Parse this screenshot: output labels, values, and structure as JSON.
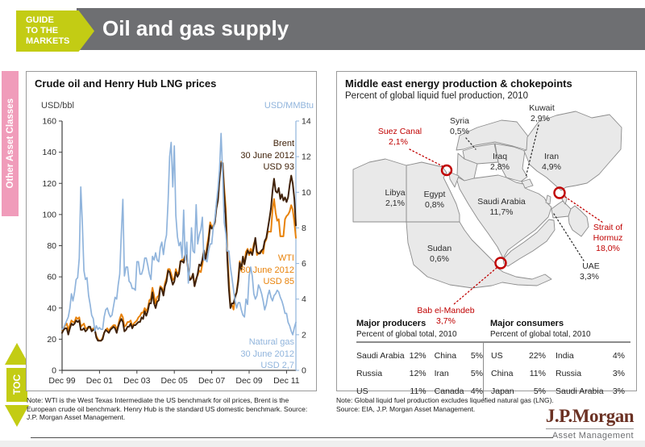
{
  "header": {
    "badge_lines": [
      "GUIDE",
      "TO THE",
      "MARKETS"
    ],
    "title": "Oil and gas supply"
  },
  "side": {
    "tab": "Other Asset Classes",
    "toc": "TOC"
  },
  "colors": {
    "header_gray": "#6e6f72",
    "badge_green": "#c3cc14",
    "tab_pink": "#f09cba",
    "brent": "#40220a",
    "wti": "#e8820a",
    "natural_gas": "#90b4dc",
    "chokepoint_red": "#c00000",
    "logo_brown": "#6b3123"
  },
  "left_panel": {
    "title": "Crude oil and Henry Hub LNG prices",
    "left_axis_label": "USD/bbl",
    "right_axis_label": "USD/MMBtu",
    "annotations": {
      "brent": [
        "Brent",
        "30 June 2012",
        "USD 93"
      ],
      "wti": [
        "WTI",
        "30 June 2012",
        "USD 85"
      ],
      "gas": [
        "Natural gas",
        "30 June 2012",
        "USD 2,7"
      ]
    },
    "note": "Note: WTI is the West Texas Intermediate the US benchmark for oil prices, Brent is the European crude oil benchmark. Henry Hub is the standard US domestic benchmark. Source: J.P. Morgan Asset Management."
  },
  "chart_data": {
    "type": "line",
    "title": "Crude oil and Henry Hub LNG prices",
    "x_start": "Dec 1999",
    "x_end": "Jun 2012",
    "x_interval": "monthly",
    "x_tick_labels": [
      "Dec 99",
      "Dec 01",
      "Dec 03",
      "Dec 05",
      "Dec 07",
      "Dec 09",
      "Dec 11"
    ],
    "months_per_x_tick": 24,
    "left_axis": {
      "label": "USD/bbl",
      "min": 0,
      "max": 160,
      "step": 20
    },
    "right_axis": {
      "label": "USD/MMBtu",
      "min": 0,
      "max": 14,
      "step": 2
    },
    "grid": false,
    "series": [
      {
        "name": "WTI",
        "axis": "left",
        "color": "#e8820a",
        "last_value": 85,
        "values": [
          26,
          27,
          29,
          30,
          26,
          29,
          32,
          31,
          31,
          34,
          33,
          34,
          28,
          29,
          30,
          27,
          27,
          28,
          27,
          26,
          27,
          26,
          22,
          20,
          19,
          19,
          21,
          24,
          26,
          27,
          25,
          27,
          28,
          29,
          29,
          26,
          29,
          33,
          36,
          34,
          28,
          29,
          31,
          31,
          32,
          28,
          30,
          31,
          32,
          34,
          35,
          37,
          37,
          40,
          38,
          40,
          45,
          46,
          53,
          48,
          43,
          47,
          48,
          54,
          53,
          50,
          56,
          59,
          65,
          65,
          62,
          58,
          59,
          65,
          62,
          63,
          70,
          71,
          71,
          74,
          73,
          64,
          59,
          59,
          62,
          54,
          59,
          61,
          64,
          63,
          68,
          74,
          72,
          80,
          86,
          95,
          92,
          93,
          95,
          106,
          112,
          125,
          134,
          133,
          117,
          104,
          77,
          57,
          41,
          42,
          39,
          48,
          50,
          59,
          70,
          64,
          71,
          69,
          76,
          78,
          74,
          78,
          76,
          81,
          84,
          74,
          75,
          76,
          77,
          75,
          82,
          84,
          89,
          89,
          89,
          103,
          110,
          101,
          96,
          97,
          86,
          86,
          86,
          97,
          99,
          100,
          102,
          106,
          103,
          95,
          85
        ]
      },
      {
        "name": "Brent",
        "axis": "left",
        "color": "#40220a",
        "last_value": 93,
        "values": [
          24,
          26,
          27,
          27,
          23,
          27,
          30,
          29,
          30,
          32,
          31,
          32,
          26,
          26,
          27,
          25,
          26,
          28,
          28,
          25,
          26,
          26,
          21,
          19,
          19,
          19,
          20,
          24,
          26,
          25,
          24,
          26,
          27,
          28,
          27,
          24,
          28,
          31,
          33,
          31,
          25,
          26,
          28,
          28,
          30,
          27,
          29,
          29,
          30,
          31,
          31,
          34,
          33,
          38,
          35,
          38,
          43,
          43,
          50,
          43,
          40,
          44,
          45,
          53,
          52,
          48,
          54,
          57,
          64,
          63,
          59,
          55,
          57,
          63,
          60,
          62,
          70,
          70,
          69,
          74,
          74,
          62,
          58,
          59,
          62,
          54,
          58,
          62,
          68,
          67,
          71,
          77,
          71,
          77,
          83,
          93,
          91,
          92,
          95,
          104,
          109,
          123,
          133,
          133,
          113,
          98,
          72,
          52,
          40,
          43,
          43,
          47,
          50,
          57,
          69,
          65,
          73,
          68,
          73,
          77,
          75,
          76,
          74,
          79,
          85,
          76,
          75,
          75,
          77,
          78,
          83,
          85,
          91,
          97,
          104,
          115,
          123,
          115,
          114,
          117,
          110,
          113,
          109,
          111,
          108,
          111,
          119,
          125,
          120,
          110,
          93
        ]
      },
      {
        "name": "Natural gas (Henry Hub)",
        "axis": "right",
        "color": "#90b4dc",
        "last_value": 2.7,
        "values": [
          2.3,
          2.4,
          2.6,
          2.8,
          3.0,
          3.5,
          4.3,
          3.9,
          4.4,
          5.1,
          5.2,
          6.3,
          10.3,
          8.3,
          5.6,
          5.1,
          5.2,
          4.2,
          3.7,
          3.1,
          2.9,
          2.2,
          2.5,
          2.3,
          2.4,
          2.3,
          2.3,
          3.0,
          3.4,
          3.5,
          3.2,
          3.0,
          3.1,
          3.6,
          4.1,
          4.0,
          4.8,
          5.4,
          7.7,
          9.6,
          5.3,
          5.8,
          5.8,
          5.0,
          4.9,
          4.6,
          4.6,
          4.5,
          6.1,
          6.1,
          5.4,
          5.4,
          5.7,
          6.3,
          6.3,
          5.9,
          5.4,
          5.1,
          6.4,
          6.2,
          6.6,
          6.2,
          6.1,
          6.9,
          7.2,
          6.5,
          7.2,
          7.6,
          9.5,
          12.0,
          12.8,
          10.3,
          12.6,
          8.7,
          7.5,
          7.0,
          7.2,
          6.3,
          9.0,
          6.2,
          7.2,
          4.9,
          5.8,
          8.0,
          6.7,
          6.6,
          9.3,
          7.1,
          7.6,
          7.9,
          8.6,
          6.2,
          6.2,
          6.1,
          6.7,
          7.1,
          7.1,
          8.0,
          8.5,
          9.4,
          10.2,
          11.3,
          13.3,
          11.1,
          8.3,
          7.7,
          6.7,
          6.7,
          5.8,
          5.2,
          4.5,
          3.9,
          3.5,
          3.8,
          3.8,
          3.4,
          3.1,
          3.0,
          4.0,
          3.7,
          5.3,
          5.8,
          5.3,
          4.3,
          4.0,
          4.2,
          4.8,
          4.6,
          4.3,
          3.9,
          3.4,
          3.7,
          4.2,
          4.5,
          4.1,
          3.9,
          4.2,
          4.3,
          4.5,
          4.4,
          4.1,
          3.9,
          3.6,
          3.2,
          3.2,
          2.7,
          2.5,
          2.2,
          2.0,
          2.4,
          2.7
        ]
      }
    ]
  },
  "right_panel": {
    "title": "Middle east energy production & chokepoints",
    "subtitle": "Percent of global liquid fuel production, 2010",
    "map_labels": {
      "syria": [
        "Syria",
        "0,5%"
      ],
      "kuwait": [
        "Kuwait",
        "2,9%"
      ],
      "iraq": [
        "Iraq",
        "2,8%"
      ],
      "iran": [
        "Iran",
        "4,9%"
      ],
      "libya": [
        "Libya",
        "2,1%"
      ],
      "egypt": [
        "Egypt",
        "0,8%"
      ],
      "saudi": [
        "Saudi Arabia",
        "11,7%"
      ],
      "sudan": [
        "Sudan",
        "0,6%"
      ],
      "uae": [
        "UAE",
        "3,3%"
      ],
      "suez": [
        "Suez Canal",
        "2,1%"
      ],
      "hormuz": [
        "Strait of",
        "Hormuz",
        "18,0%"
      ],
      "mandeb": [
        "Bab el-Mandeb",
        "3,7%"
      ]
    },
    "producers": {
      "title": "Major producers",
      "subtitle": "Percent of global total, 2010",
      "rows": [
        {
          "n1": "Saudi Arabia",
          "v1": "12%",
          "n2": "China",
          "v2": "5%"
        },
        {
          "n1": "Russia",
          "v1": "12%",
          "n2": "Iran",
          "v2": "5%"
        },
        {
          "n1": "US",
          "v1": "11%",
          "n2": "Canada",
          "v2": "4%"
        }
      ]
    },
    "consumers": {
      "title": "Major consumers",
      "subtitle": "Percent of global total, 2010",
      "rows": [
        {
          "n1": "US",
          "v1": "22%",
          "n2": "India",
          "v2": "4%"
        },
        {
          "n1": "China",
          "v1": "11%",
          "n2": "Russia",
          "v2": "3%"
        },
        {
          "n1": "Japan",
          "v1": "5%",
          "n2": "Saudi Arabia",
          "v2": "3%"
        }
      ]
    },
    "note": "Note: Global liquid fuel production excludes liquefied natural gas (LNG). Source: EIA, J.P. Morgan Asset Management."
  },
  "footer": {
    "logo": "J.P.Morgan",
    "logo_sub": "Asset Management"
  }
}
